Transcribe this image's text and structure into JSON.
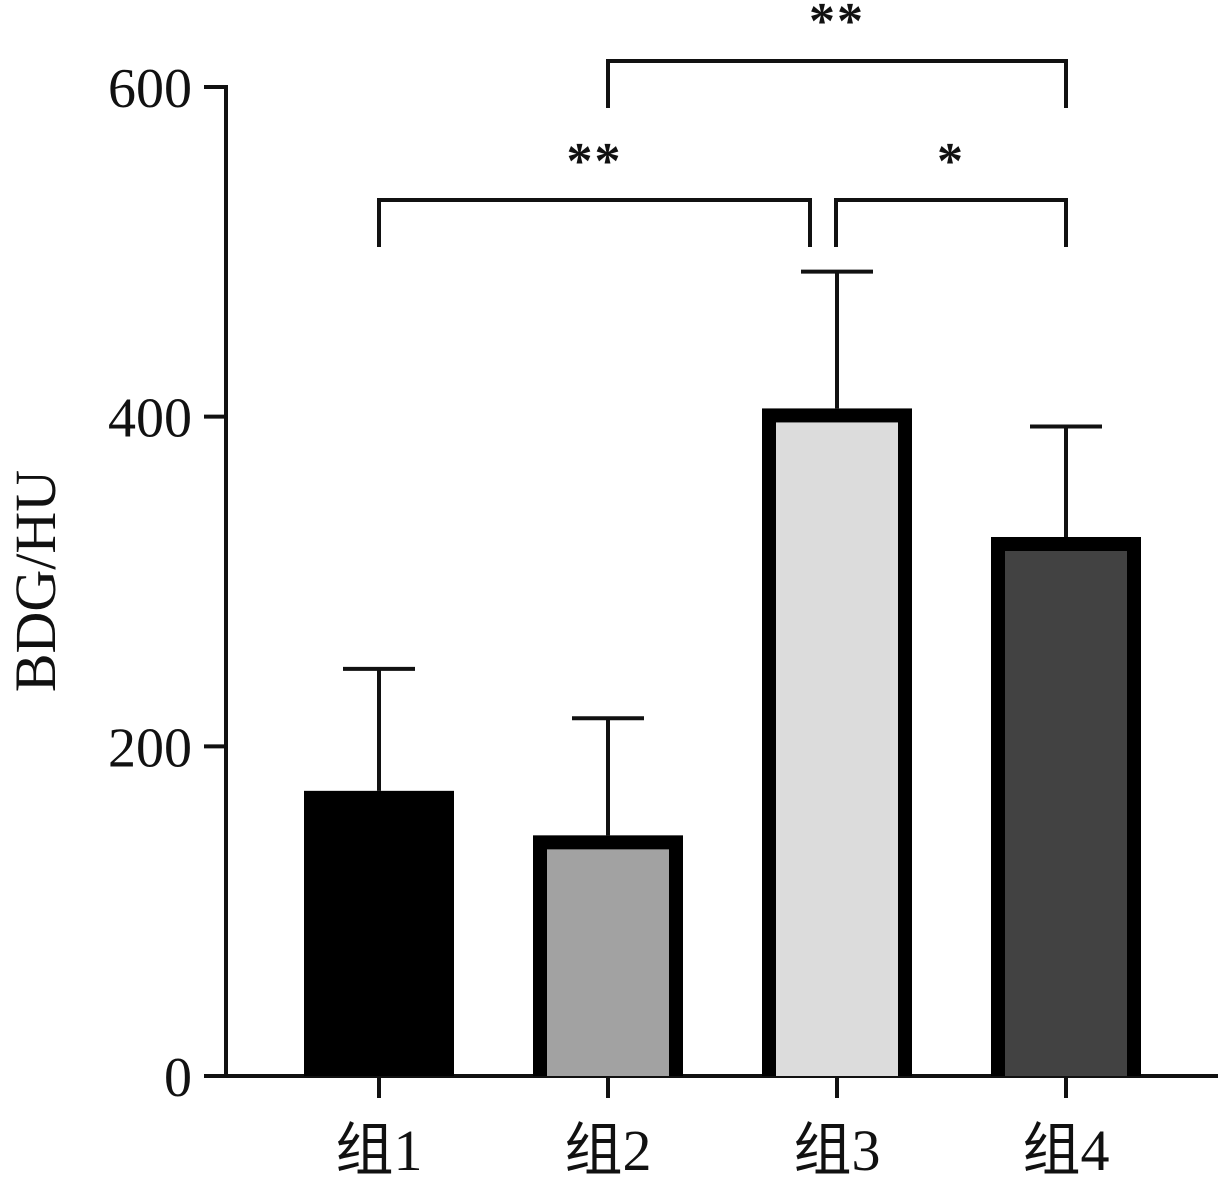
{
  "chart_data": {
    "type": "bar",
    "title": "",
    "xlabel": "",
    "ylabel": "BDG/HU",
    "categories": [
      "组1",
      "组2",
      "组3",
      "组4"
    ],
    "values": [
      173,
      146,
      405,
      327
    ],
    "error_bars": [
      74,
      71,
      83,
      67
    ],
    "ylim": [
      0,
      600
    ],
    "yticks": [
      0,
      200,
      400,
      600
    ],
    "grid": false,
    "bar_colors": [
      "#000000",
      "#a2a2a2",
      "#dcdcdc",
      "#424242"
    ],
    "bar_outline_color": "#000000",
    "significance": [
      {
        "from": "组1",
        "to": "组3",
        "label": "**"
      },
      {
        "from": "组3",
        "to": "组4",
        "label": "*"
      },
      {
        "from": "组2",
        "to": "组4",
        "label": "**"
      }
    ]
  }
}
